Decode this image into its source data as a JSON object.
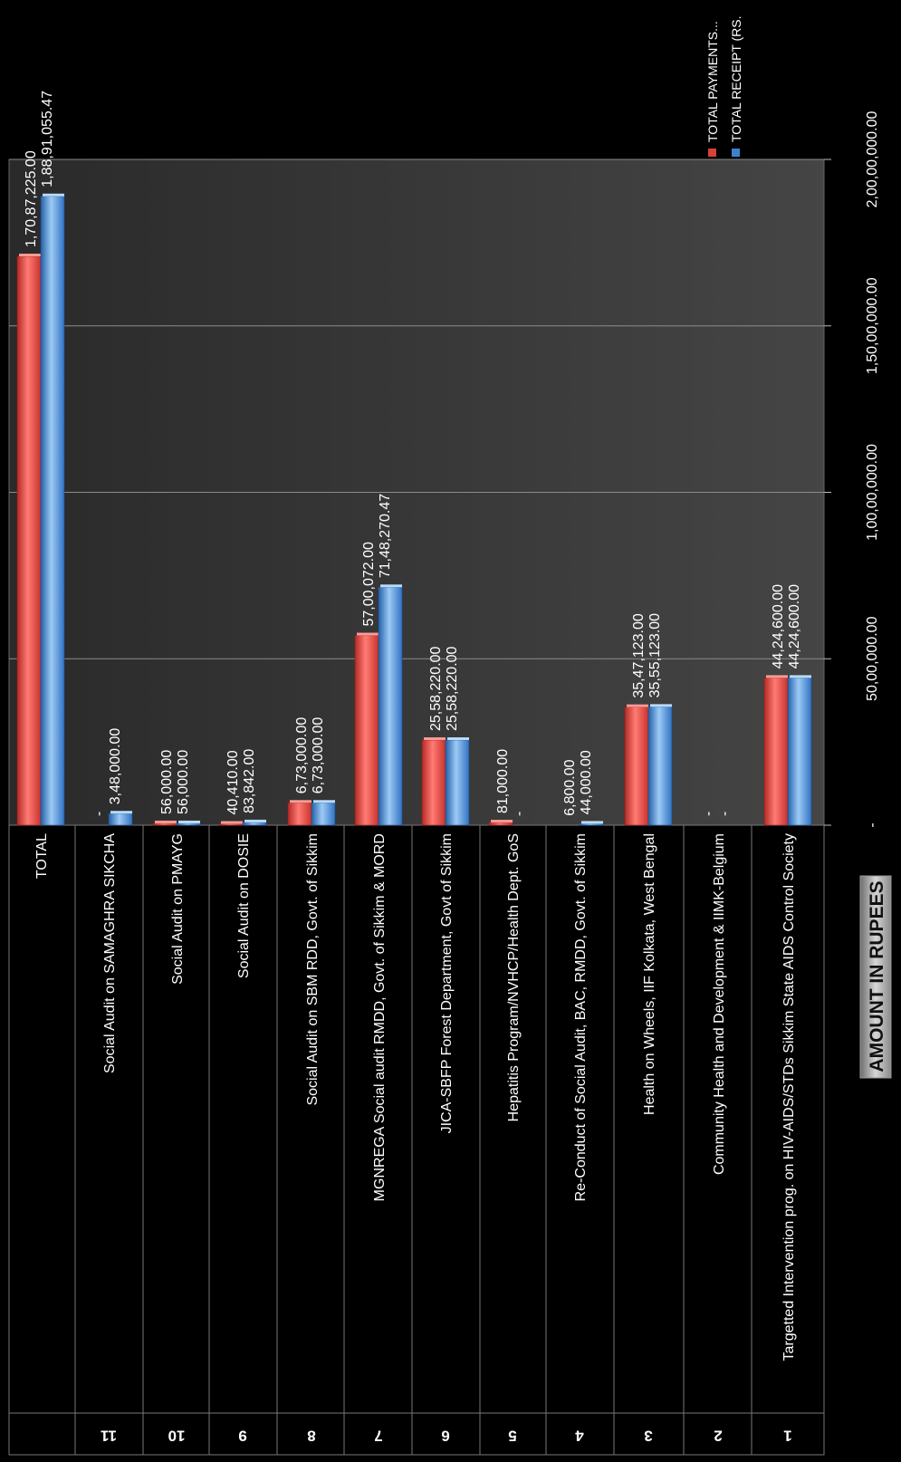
{
  "chart_data": {
    "type": "bar",
    "orientation": "horizontal",
    "title": "",
    "xlabel": "AMOUNT IN RUPEES",
    "ylabel": "",
    "xlim": [
      0,
      20000000
    ],
    "grid": true,
    "legend_position": "top-right",
    "x_ticks": [
      {
        "value": 0,
        "label": "-"
      },
      {
        "value": 5000000,
        "label": "50,00,000.00"
      },
      {
        "value": 10000000,
        "label": "1,00,00,000.00"
      },
      {
        "value": 15000000,
        "label": "1,50,00,000.00"
      },
      {
        "value": 20000000,
        "label": "2,00,00,000.00"
      }
    ],
    "categories": [
      {
        "number": "1",
        "name": "Targetted Intervention prog. on HIV-AIDS/STDs Sikkim State AIDS Control  Society"
      },
      {
        "number": "2",
        "name": "Community Health and Development  & IIMK-Belgium"
      },
      {
        "number": "3",
        "name": "Health on Wheels, IIF Kolkata, West Bengal"
      },
      {
        "number": "4",
        "name": "Re-Conduct of Social Audit, BAC, RMDD, Govt. of Sikkim"
      },
      {
        "number": "5",
        "name": "Hepatitis Program/NVHCP/Health Dept. GoS"
      },
      {
        "number": "6",
        "name": "JICA-SBFP Forest Department, Govt of Sikkim"
      },
      {
        "number": "7",
        "name": "MGNREGA  Social audit RMDD, Govt. of Sikkim & MORD"
      },
      {
        "number": "8",
        "name": "Social Audit on SBM RDD, Govt. of Sikkim"
      },
      {
        "number": "9",
        "name": "Social Audit on DOSIE"
      },
      {
        "number": "10",
        "name": "Social Audit on PMAYG"
      },
      {
        "number": "11",
        "name": "Social Audit on SAMAGHRA SIKCHA"
      },
      {
        "number": "",
        "name": "TOTAL"
      }
    ],
    "series": [
      {
        "name": "TOTAL PAYMENTS...",
        "color": "#d9403a",
        "values": [
          4424600,
          0,
          3547123,
          6800,
          81000,
          2558220,
          5700072,
          673000,
          40410,
          56000,
          0,
          17087225
        ],
        "labels": [
          "44,24,600.00",
          "-",
          "35,47,123.00",
          "6,800.00",
          "81,000.00",
          "25,58,220.00",
          "57,00,072.00",
          "6,73,000.00",
          "40,410.00",
          "56,000.00",
          "-",
          "1,70,87,225.00"
        ]
      },
      {
        "name": "TOTAL RECEIPT (RS.",
        "color": "#3d82d0",
        "values": [
          4424600,
          0,
          3555123,
          44000,
          0,
          2558220,
          7148270.47,
          673000,
          83842,
          56000,
          348000,
          18891055.47
        ],
        "labels": [
          "44,24,600.00",
          "-",
          "35,55,123.00",
          "44,000.00",
          "-",
          "25,58,220.00",
          "71,48,270.47",
          "6,73,000.00",
          "83,842.00",
          "56,000.00",
          "3,48,000.00",
          "1,88,91,055.47"
        ]
      }
    ]
  }
}
